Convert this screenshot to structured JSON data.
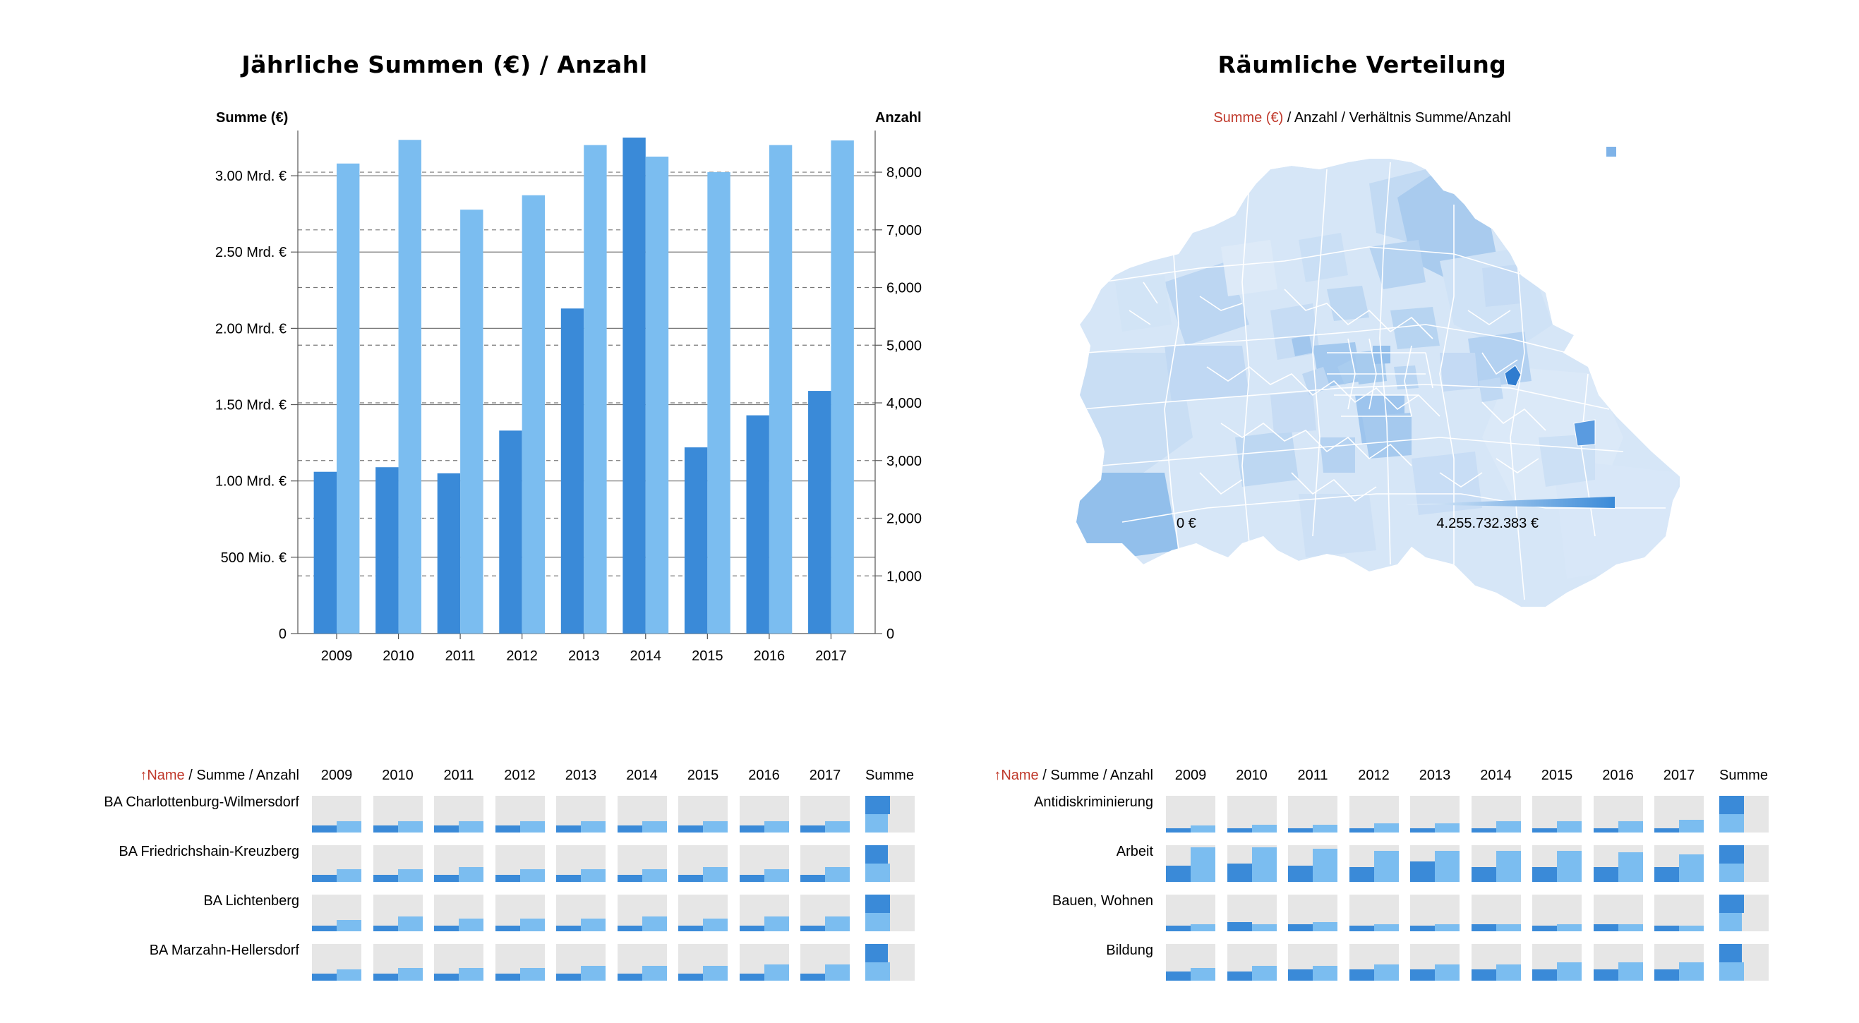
{
  "colors": {
    "sum": "#3a8ad8",
    "count": "#7bbdf0",
    "active_sort": "#c0392b",
    "mini_bg": "#e6e6e6"
  },
  "left_title": "Jährliche Summen (€) / Anzahl",
  "right_title": "Räumliche Verteilung",
  "chart_data": {
    "type": "bar",
    "title": "Jährliche Summen (€) / Anzahl",
    "categories": [
      "2009",
      "2010",
      "2011",
      "2012",
      "2013",
      "2014",
      "2015",
      "2016",
      "2017"
    ],
    "ylabel_left": "Summe (€)",
    "ylabel_right": "Anzahl",
    "left_ticks": [
      "0",
      "500 Mio. €",
      "1.00 Mrd. €",
      "1.50 Mrd. €",
      "2.00 Mrd. €",
      "2.50 Mrd. €",
      "3.00 Mrd. €"
    ],
    "right_ticks": [
      "0",
      "1,000",
      "2,000",
      "3,000",
      "4,000",
      "5,000",
      "6,000",
      "7,000",
      "8,000"
    ],
    "ylim_left": [
      0,
      3250000000
    ],
    "ylim_right": [
      0,
      8600
    ],
    "series": [
      {
        "name": "Summe (€)",
        "axis": "left",
        "values": [
          1060000000,
          1090000000,
          1050000000,
          1330000000,
          2130000000,
          3250000000,
          1220000000,
          1430000000,
          1590000000
        ]
      },
      {
        "name": "Anzahl",
        "axis": "right",
        "values": [
          8150,
          8560,
          7350,
          7600,
          8470,
          8270,
          8000,
          8470,
          8550
        ]
      }
    ],
    "grid": true,
    "legend": "none"
  },
  "map": {
    "subtitle": {
      "active": "Summe (€)",
      "rest": [
        " / ",
        "Anzahl",
        " / ",
        "Verhältnis Summe/Anzahl"
      ]
    },
    "legend_min": "0 €",
    "legend_max": "4.255.732.383 €"
  },
  "tables": [
    {
      "header": {
        "sort_active": "↑Name",
        "rest": [
          " / ",
          "Summe",
          " / ",
          "Anzahl"
        ]
      },
      "years": [
        "2009",
        "2010",
        "2011",
        "2012",
        "2013",
        "2014",
        "2015",
        "2016",
        "2017"
      ],
      "sum_label": "Summe",
      "rows": [
        {
          "name": "BA Charlottenburg-Wilmersdorf",
          "a": [
            0.2,
            0.2,
            0.2,
            0.2,
            0.2,
            0.2,
            0.2,
            0.2,
            0.2
          ],
          "c": [
            0.3,
            0.3,
            0.3,
            0.3,
            0.3,
            0.3,
            0.3,
            0.3,
            0.3
          ],
          "total_a": 0.5,
          "total_c": 0.45
        },
        {
          "name": "BA Friedrichshain-Kreuzberg",
          "a": [
            0.2,
            0.2,
            0.2,
            0.2,
            0.2,
            0.2,
            0.2,
            0.2,
            0.2
          ],
          "c": [
            0.35,
            0.35,
            0.4,
            0.35,
            0.35,
            0.35,
            0.4,
            0.35,
            0.4
          ],
          "total_a": 0.45,
          "total_c": 0.5
        },
        {
          "name": "BA Lichtenberg",
          "a": [
            0.15,
            0.15,
            0.15,
            0.15,
            0.15,
            0.15,
            0.15,
            0.15,
            0.15
          ],
          "c": [
            0.3,
            0.4,
            0.35,
            0.35,
            0.35,
            0.4,
            0.35,
            0.4,
            0.4
          ],
          "total_a": 0.5,
          "total_c": 0.5
        },
        {
          "name": "BA Marzahn-Hellersdorf",
          "a": [
            0.2,
            0.2,
            0.2,
            0.2,
            0.2,
            0.2,
            0.2,
            0.2,
            0.2
          ],
          "c": [
            0.3,
            0.35,
            0.35,
            0.35,
            0.4,
            0.4,
            0.4,
            0.45,
            0.45
          ],
          "total_a": 0.45,
          "total_c": 0.5
        }
      ]
    },
    {
      "header": {
        "sort_active": "↑Name",
        "rest": [
          " / ",
          "Summe",
          " / ",
          "Anzahl"
        ]
      },
      "years": [
        "2009",
        "2010",
        "2011",
        "2012",
        "2013",
        "2014",
        "2015",
        "2016",
        "2017"
      ],
      "sum_label": "Summe",
      "rows": [
        {
          "name": "Antidiskriminierung",
          "a": [
            0.12,
            0.12,
            0.12,
            0.12,
            0.12,
            0.12,
            0.12,
            0.12,
            0.12
          ],
          "c": [
            0.2,
            0.22,
            0.22,
            0.25,
            0.25,
            0.3,
            0.3,
            0.3,
            0.35
          ],
          "total_a": 0.5,
          "total_c": 0.5
        },
        {
          "name": "Arbeit",
          "a": [
            0.45,
            0.5,
            0.45,
            0.4,
            0.55,
            0.4,
            0.4,
            0.4,
            0.4
          ],
          "c": [
            0.95,
            0.95,
            0.9,
            0.85,
            0.85,
            0.85,
            0.85,
            0.8,
            0.75
          ],
          "total_a": 0.5,
          "total_c": 0.5
        },
        {
          "name": "Bauen, Wohnen",
          "a": [
            0.15,
            0.25,
            0.2,
            0.15,
            0.15,
            0.2,
            0.15,
            0.2,
            0.15
          ],
          "c": [
            0.2,
            0.2,
            0.25,
            0.2,
            0.2,
            0.2,
            0.2,
            0.2,
            0.15
          ],
          "total_a": 0.5,
          "total_c": 0.45
        },
        {
          "name": "Bildung",
          "a": [
            0.25,
            0.25,
            0.3,
            0.3,
            0.3,
            0.3,
            0.3,
            0.3,
            0.3
          ],
          "c": [
            0.35,
            0.4,
            0.4,
            0.45,
            0.45,
            0.45,
            0.5,
            0.5,
            0.5
          ],
          "total_a": 0.45,
          "total_c": 0.5
        }
      ]
    }
  ]
}
